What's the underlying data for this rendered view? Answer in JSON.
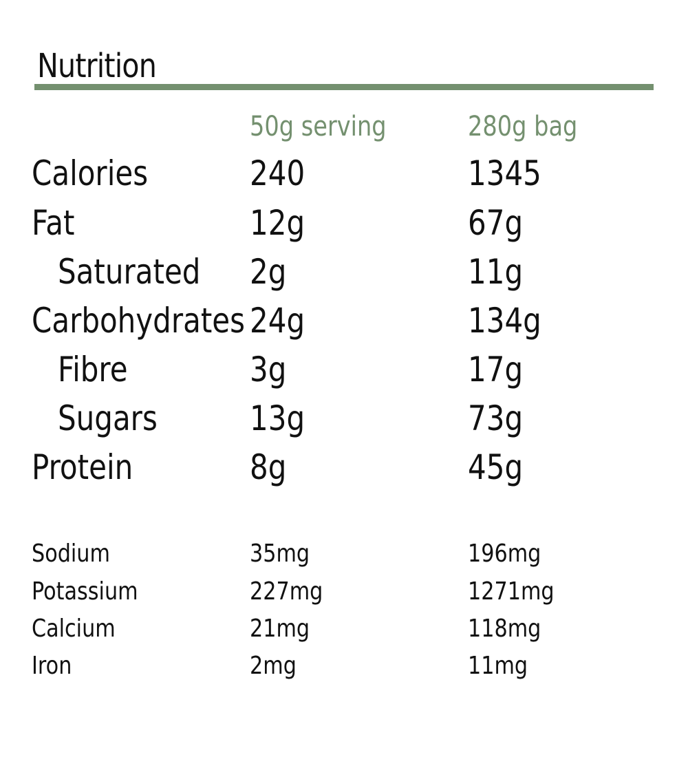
{
  "title": "Nutrition",
  "accent_color": "#74906f",
  "columns": {
    "serving": "50g serving",
    "bag": "280g bag"
  },
  "main_nutrients": [
    {
      "label": "Calories",
      "serving": "240",
      "bag": "1345",
      "indent": false
    },
    {
      "label": "Fat",
      "serving": "12g",
      "bag": "67g",
      "indent": false
    },
    {
      "label": "Saturated",
      "serving": "2g",
      "bag": "11g",
      "indent": true
    },
    {
      "label": "Carbohydrates",
      "serving": "24g",
      "bag": "134g",
      "indent": false
    },
    {
      "label": "Fibre",
      "serving": "3g",
      "bag": "17g",
      "indent": true
    },
    {
      "label": "Sugars",
      "serving": "13g",
      "bag": "73g",
      "indent": true
    },
    {
      "label": "Protein",
      "serving": "8g",
      "bag": "45g",
      "indent": false
    }
  ],
  "minerals": [
    {
      "label": "Sodium",
      "serving": "35mg",
      "bag": "196mg"
    },
    {
      "label": "Potassium",
      "serving": "227mg",
      "bag": "1271mg"
    },
    {
      "label": "Calcium",
      "serving": "21mg",
      "bag": "118mg"
    },
    {
      "label": "Iron",
      "serving": "2mg",
      "bag": "11mg"
    }
  ]
}
